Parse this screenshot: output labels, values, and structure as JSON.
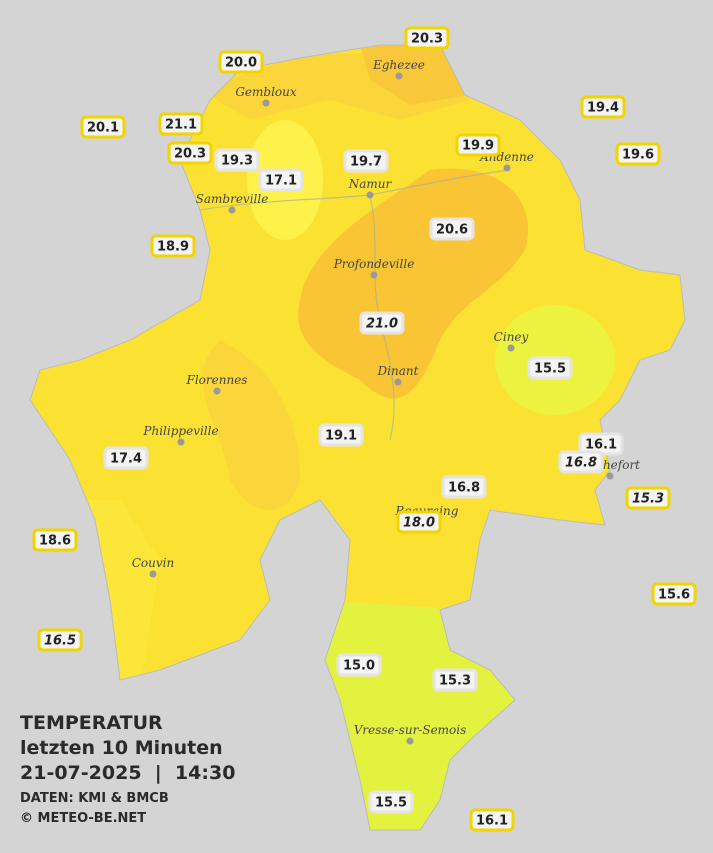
{
  "header": {
    "title": "TEMPERATUR",
    "period": "letzten 10 Minuten",
    "datetime": "21-07-2025  |  14:30",
    "source": "DATEN: KMI & BMCB",
    "credit": "© METEO-BE.NET"
  },
  "towns": [
    "Eghezee",
    "Gembloux",
    "Andenne",
    "Namur",
    "Sambreville",
    "Profondeville",
    "Ciney",
    "Dinant",
    "Florennes",
    "Philippeville",
    "Beauraing",
    "Rochefort",
    "Couvin",
    "Vresse-sur-Semois"
  ],
  "stations": [
    "20.3",
    "20.0",
    "19.4",
    "20.1",
    "21.1",
    "20.3",
    "19.3",
    "19.7",
    "19.9",
    "19.6",
    "17.1",
    "20.6",
    "18.9",
    "21.0",
    "15.5",
    "19.1",
    "16.1",
    "17.4",
    "16.8",
    "16.8",
    "15.3",
    "18.0",
    "18.6",
    "15.6",
    "16.5",
    "15.0",
    "15.3",
    "15.5",
    "16.1"
  ]
}
